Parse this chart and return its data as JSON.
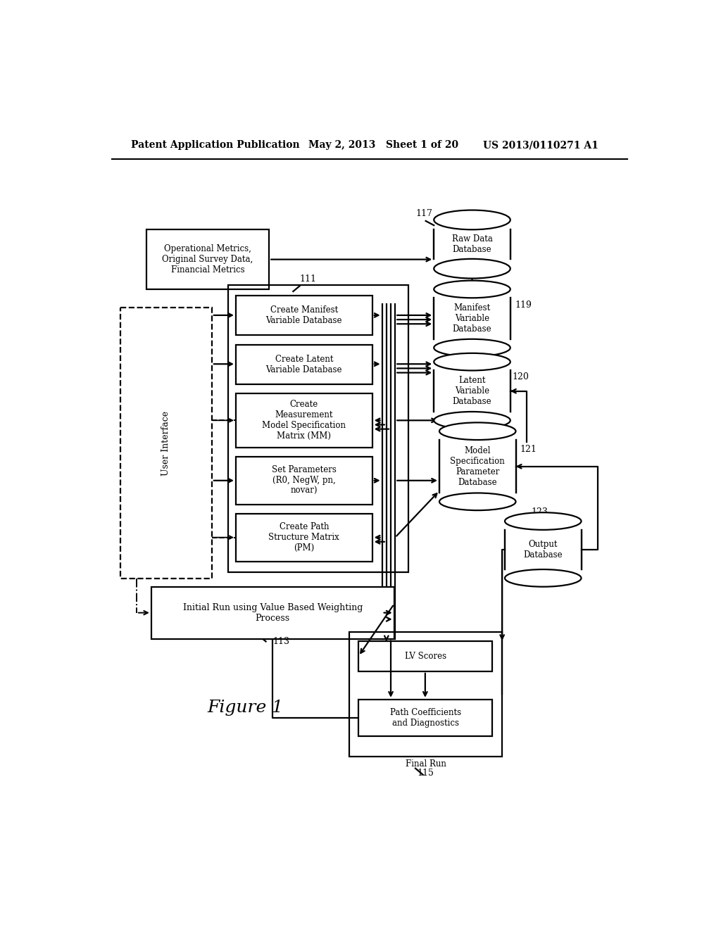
{
  "bg_color": "#ffffff",
  "header_left": "Patent Application Publication",
  "header_mid": "May 2, 2013   Sheet 1 of 20",
  "header_right": "US 2013/0110271 A1"
}
